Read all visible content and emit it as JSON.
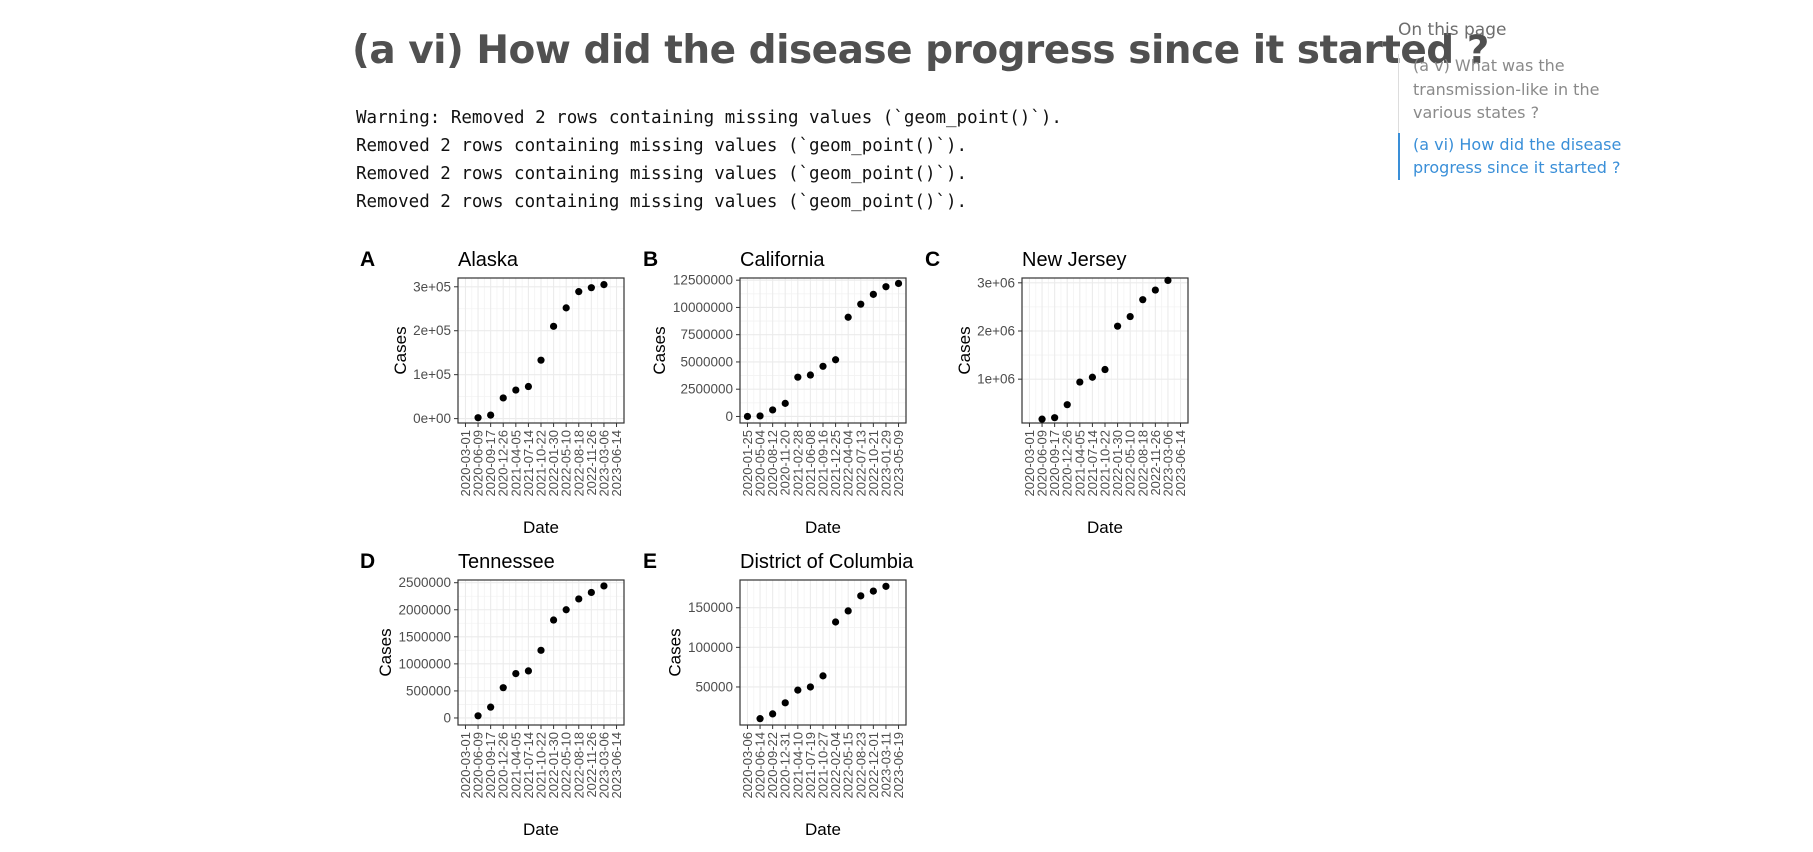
{
  "page": {
    "title": "(a vi) How did the disease progress since it started ?",
    "output_lines": [
      "Warning: Removed 2 rows containing missing values (`geom_point()`).",
      "Removed 2 rows containing missing values (`geom_point()`).",
      "Removed 2 rows containing missing values (`geom_point()`).",
      "Removed 2 rows containing missing values (`geom_point()`)."
    ]
  },
  "toc": {
    "heading": "On this page",
    "items": [
      {
        "label": "(a v) What was the transmission-like in the various states ?",
        "active": false
      },
      {
        "label": "(a vi) How did the disease progress since it started ?",
        "active": true
      }
    ]
  },
  "colors": {
    "point": "#000000",
    "grid": "#ebebeb",
    "panel_border": "#333333",
    "text": "#000000",
    "tick_text": "#4d4d4d",
    "toc_active": "#3a8fd8"
  },
  "chart_data": [
    {
      "tag": "A",
      "title": "Alaska",
      "type": "scatter",
      "xlabel": "Date",
      "ylabel": "Cases",
      "x_ticks": [
        "2020-03-01",
        "2020-06-09",
        "2020-09-17",
        "2020-12-26",
        "2021-04-05",
        "2021-07-14",
        "2021-10-22",
        "2022-01-30",
        "2022-05-10",
        "2022-08-18",
        "2022-11-26",
        "2023-03-06",
        "2023-06-14"
      ],
      "y_ticks": [
        "0e+00",
        "1e+05",
        "2e+05",
        "3e+05"
      ],
      "y_tick_values": [
        0,
        100000,
        200000,
        300000
      ],
      "ylim": [
        -10000,
        320000
      ],
      "x": [
        "2020-06-09",
        "2020-09-17",
        "2020-12-26",
        "2021-04-05",
        "2021-07-14",
        "2021-10-22",
        "2022-01-30",
        "2022-05-10",
        "2022-08-18",
        "2022-11-26",
        "2023-03-06"
      ],
      "y": [
        2000,
        8000,
        47000,
        65000,
        73000,
        133000,
        210000,
        252000,
        289000,
        298000,
        305000
      ]
    },
    {
      "tag": "B",
      "title": "California",
      "type": "scatter",
      "xlabel": "Date",
      "ylabel": "Cases",
      "x_ticks": [
        "2020-01-25",
        "2020-05-04",
        "2020-08-12",
        "2020-11-20",
        "2021-02-28",
        "2021-06-08",
        "2021-09-16",
        "2021-12-25",
        "2022-04-04",
        "2022-07-13",
        "2022-10-21",
        "2023-01-29",
        "2023-05-09"
      ],
      "y_ticks": [
        "0",
        "2500000",
        "5000000",
        "7500000",
        "10000000",
        "12500000"
      ],
      "y_tick_values": [
        0,
        2500000,
        5000000,
        7500000,
        10000000,
        12500000
      ],
      "ylim": [
        -600000,
        12700000
      ],
      "x": [
        "2020-01-25",
        "2020-05-04",
        "2020-08-12",
        "2020-11-20",
        "2021-02-28",
        "2021-06-08",
        "2021-09-16",
        "2021-12-25",
        "2022-04-04",
        "2022-07-13",
        "2022-10-21",
        "2023-01-29",
        "2023-05-09"
      ],
      "y": [
        0,
        50000,
        600000,
        1200000,
        3600000,
        3800000,
        4600000,
        5200000,
        9100000,
        10300000,
        11200000,
        11900000,
        12200000
      ]
    },
    {
      "tag": "C",
      "title": "New Jersey",
      "type": "scatter",
      "xlabel": "Date",
      "ylabel": "Cases",
      "x_ticks": [
        "2020-03-01",
        "2020-06-09",
        "2020-09-17",
        "2020-12-26",
        "2021-04-05",
        "2021-07-14",
        "2021-10-22",
        "2022-01-30",
        "2022-05-10",
        "2022-08-18",
        "2022-11-26",
        "2023-03-06",
        "2023-06-14"
      ],
      "y_ticks": [
        "1e+06",
        "2e+06",
        "3e+06"
      ],
      "y_tick_values": [
        1000000,
        2000000,
        3000000
      ],
      "ylim": [
        90000,
        3100000
      ],
      "x": [
        "2020-06-09",
        "2020-09-17",
        "2020-12-26",
        "2021-04-05",
        "2021-07-14",
        "2021-10-22",
        "2022-01-30",
        "2022-05-10",
        "2022-08-18",
        "2022-11-26",
        "2023-03-06"
      ],
      "y": [
        170000,
        200000,
        470000,
        940000,
        1040000,
        1200000,
        2100000,
        2300000,
        2650000,
        2850000,
        3050000
      ]
    },
    {
      "tag": "D",
      "title": "Tennessee",
      "type": "scatter",
      "xlabel": "Date",
      "ylabel": "Cases",
      "x_ticks": [
        "2020-03-01",
        "2020-06-09",
        "2020-09-17",
        "2020-12-26",
        "2021-04-05",
        "2021-07-14",
        "2021-10-22",
        "2022-01-30",
        "2022-05-10",
        "2022-08-18",
        "2022-11-26",
        "2023-03-06",
        "2023-06-14"
      ],
      "y_ticks": [
        "0",
        "500000",
        "1000000",
        "1500000",
        "2000000",
        "2500000"
      ],
      "y_tick_values": [
        0,
        500000,
        1000000,
        1500000,
        2000000,
        2500000
      ],
      "ylim": [
        -130000,
        2550000
      ],
      "x": [
        "2020-06-09",
        "2020-09-17",
        "2020-12-26",
        "2021-04-05",
        "2021-07-14",
        "2021-10-22",
        "2022-01-30",
        "2022-05-10",
        "2022-08-18",
        "2022-11-26",
        "2023-03-06"
      ],
      "y": [
        40000,
        200000,
        560000,
        820000,
        870000,
        1250000,
        1810000,
        2000000,
        2200000,
        2320000,
        2440000
      ]
    },
    {
      "tag": "E",
      "title": "District of Columbia",
      "type": "scatter",
      "xlabel": "Date",
      "ylabel": "Cases",
      "x_ticks": [
        "2020-03-06",
        "2020-06-14",
        "2020-09-22",
        "2020-12-31",
        "2021-04-10",
        "2021-07-19",
        "2021-10-27",
        "2022-02-04",
        "2022-05-15",
        "2022-08-23",
        "2022-12-01",
        "2023-03-11",
        "2023-06-19"
      ],
      "y_ticks": [
        "50000",
        "100000",
        "150000"
      ],
      "y_tick_values": [
        50000,
        100000,
        150000
      ],
      "ylim": [
        2000,
        185000
      ],
      "x": [
        "2020-06-14",
        "2020-09-22",
        "2020-12-31",
        "2021-04-10",
        "2021-07-19",
        "2021-10-27",
        "2022-02-04",
        "2022-05-15",
        "2022-08-23",
        "2022-12-01",
        "2023-03-11"
      ],
      "y": [
        10000,
        16000,
        30000,
        46000,
        50000,
        64000,
        132000,
        146000,
        165000,
        171000,
        177000
      ]
    }
  ]
}
